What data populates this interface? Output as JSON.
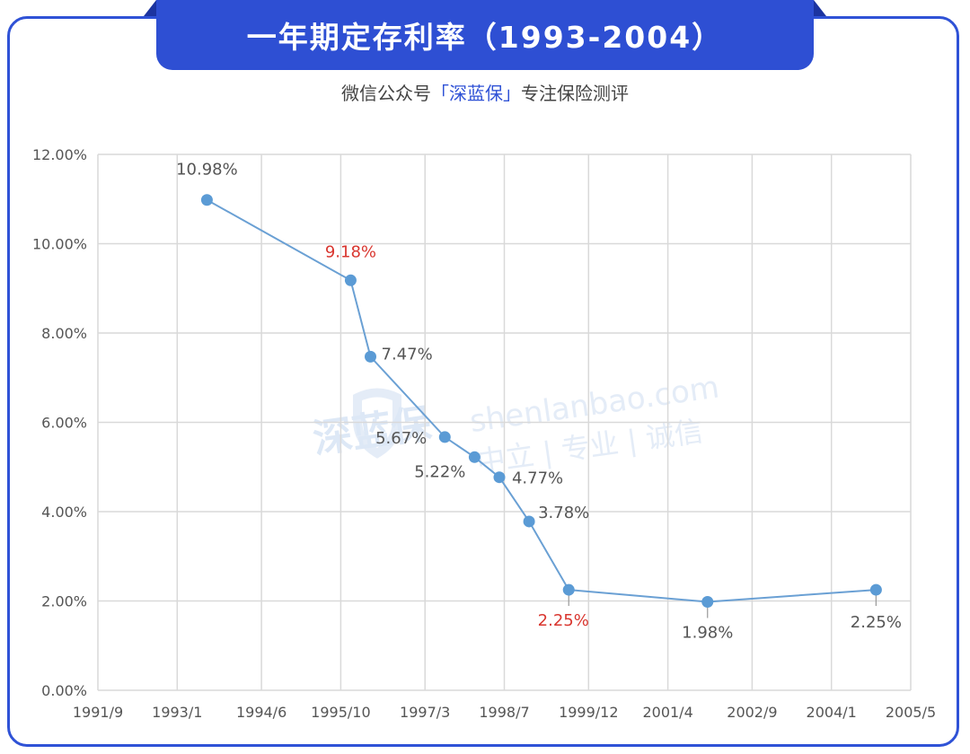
{
  "header": {
    "title": "一年期定存利率（1993-2004）",
    "subtitle_prefix": "微信公众号",
    "subtitle_brand": "「深蓝保」",
    "subtitle_suffix": "专注保险测评"
  },
  "watermark": {
    "logo_text": "深蓝保",
    "site": "shenlanbao.com",
    "slogan": "中立 | 专业 | 诚信"
  },
  "colors": {
    "frame": "#2f52d6",
    "line": "#6aa0d4",
    "point": "#5b9bd5",
    "highlight_label": "#d9362f",
    "normal_label": "#555555",
    "grid": "#d9d9d9"
  },
  "chart_data": {
    "type": "line",
    "title": "",
    "xlabel": "",
    "ylabel": "",
    "x_tick_labels": [
      "1991/9",
      "1993/1",
      "1994/6",
      "1995/10",
      "1997/3",
      "1998/7",
      "1999/12",
      "2001/4",
      "2002/9",
      "2004/1",
      "2005/5"
    ],
    "y_tick_labels": [
      "0.00%",
      "2.00%",
      "4.00%",
      "6.00%",
      "8.00%",
      "10.00%",
      "12.00%"
    ],
    "ylim": [
      0,
      12
    ],
    "xlim": [
      "1991/9",
      "2005/5"
    ],
    "grid": true,
    "legend": "none",
    "series": [
      {
        "points": [
          {
            "date": "1993/07",
            "value": 10.98,
            "label": "10.98%",
            "highlight": false
          },
          {
            "date": "1995/12",
            "value": 9.18,
            "label": "9.18%",
            "highlight": true
          },
          {
            "date": "1996/04",
            "value": 7.47,
            "label": "7.47%",
            "highlight": false
          },
          {
            "date": "1997/07",
            "value": 5.67,
            "label": "5.67%",
            "highlight": false
          },
          {
            "date": "1998/01",
            "value": 5.22,
            "label": "5.22%",
            "highlight": false
          },
          {
            "date": "1998/06",
            "value": 4.77,
            "label": "4.77%",
            "highlight": false
          },
          {
            "date": "1998/12",
            "value": 3.78,
            "label": "3.78%",
            "highlight": false
          },
          {
            "date": "1999/08",
            "value": 2.25,
            "label": "2.25%",
            "highlight": true
          },
          {
            "date": "2001/12",
            "value": 1.98,
            "label": "1.98%",
            "highlight": false
          },
          {
            "date": "2004/10",
            "value": 2.25,
            "label": "2.25%",
            "highlight": false
          }
        ]
      }
    ]
  }
}
